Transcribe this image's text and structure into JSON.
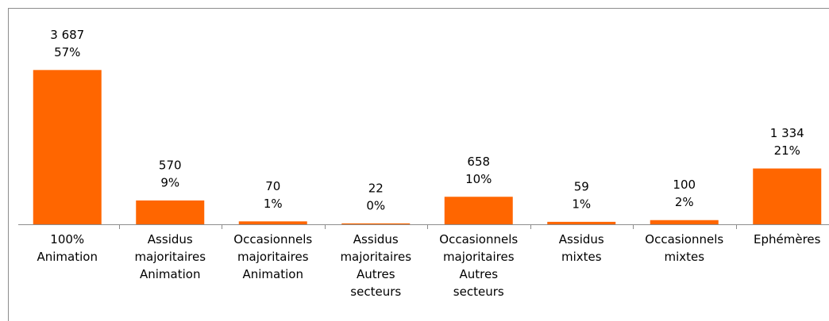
{
  "chart_data": {
    "type": "bar",
    "categories": [
      [
        "100%",
        "Animation"
      ],
      [
        "Assidus",
        "majoritaires",
        "Animation"
      ],
      [
        "Occasionnels",
        "majoritaires",
        "Animation"
      ],
      [
        "Assidus",
        "majoritaires",
        "Autres",
        "secteurs"
      ],
      [
        "Occasionnels",
        "majoritaires",
        "Autres",
        "secteurs"
      ],
      [
        "Assidus",
        "mixtes"
      ],
      [
        "Occasionnels",
        "mixtes"
      ],
      [
        "Ephémères"
      ]
    ],
    "values": [
      3687,
      570,
      70,
      22,
      658,
      59,
      100,
      1334
    ],
    "value_labels": [
      "3 687",
      "570",
      "70",
      "22",
      "658",
      "59",
      "100",
      "1 334"
    ],
    "shares": [
      57,
      9,
      1,
      0,
      10,
      1,
      2,
      21
    ],
    "share_labels": [
      "57%",
      "9%",
      "1%",
      "0%",
      "10%",
      "1%",
      "2%",
      "21%"
    ],
    "color": "#ff6600",
    "ylim": [
      0,
      5000
    ]
  }
}
